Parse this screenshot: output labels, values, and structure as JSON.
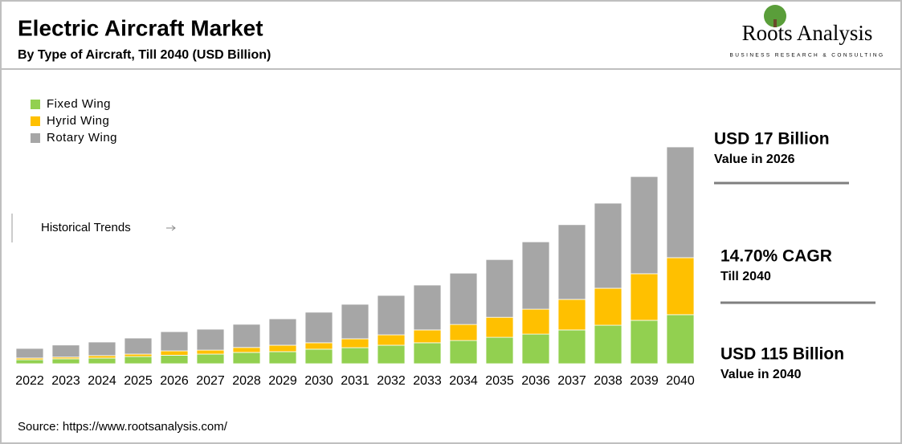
{
  "logo": {
    "name": "Roots Analysis",
    "tagline": "BUSINESS RESEARCH & CONSULTING"
  },
  "chart_data": {
    "type": "bar",
    "stacked": true,
    "title": "Electric Aircraft Market",
    "subtitle": "By Type of Aircraft, Till 2040 (USD Billion)",
    "categories": [
      "2022",
      "2023",
      "2024",
      "2025",
      "2026",
      "2027",
      "2028",
      "2029",
      "2030",
      "2031",
      "2032",
      "2033",
      "2034",
      "2035",
      "2036",
      "2037",
      "2038",
      "2039",
      "2040"
    ],
    "series": [
      {
        "name": "Fixed Wing",
        "color": "#92d050",
        "values": [
          2.1,
          2.6,
          3.0,
          3.8,
          4.5,
          5.1,
          6.0,
          6.4,
          7.7,
          8.5,
          9.8,
          11.1,
          12.3,
          14.0,
          15.7,
          17.9,
          20.4,
          23.0,
          26.0
        ]
      },
      {
        "name": "Hyrid Wing",
        "color": "#ffc000",
        "values": [
          0.9,
          0.9,
          1.3,
          1.3,
          2.3,
          2.1,
          2.6,
          3.4,
          3.4,
          4.7,
          5.5,
          6.8,
          8.5,
          10.6,
          13.2,
          16.2,
          19.6,
          24.7,
          30.2
        ]
      },
      {
        "name": "Rotary Wing",
        "color": "#a6a6a6",
        "values": [
          5.1,
          6.4,
          7.2,
          8.5,
          10.2,
          11.1,
          12.3,
          14.0,
          16.2,
          18.3,
          20.9,
          23.8,
          27.2,
          30.6,
          35.7,
          39.6,
          45.1,
          51.5,
          58.7
        ]
      }
    ],
    "period_label": "Historical Trends",
    "annotations": [
      "USD 17 Billion",
      "Value in 2026",
      "14.70%  CAGR",
      "Till 2040",
      "USD 115 Billion",
      "Value in 2040"
    ],
    "source": "Source: https://www.rootsanalysis.com/"
  }
}
